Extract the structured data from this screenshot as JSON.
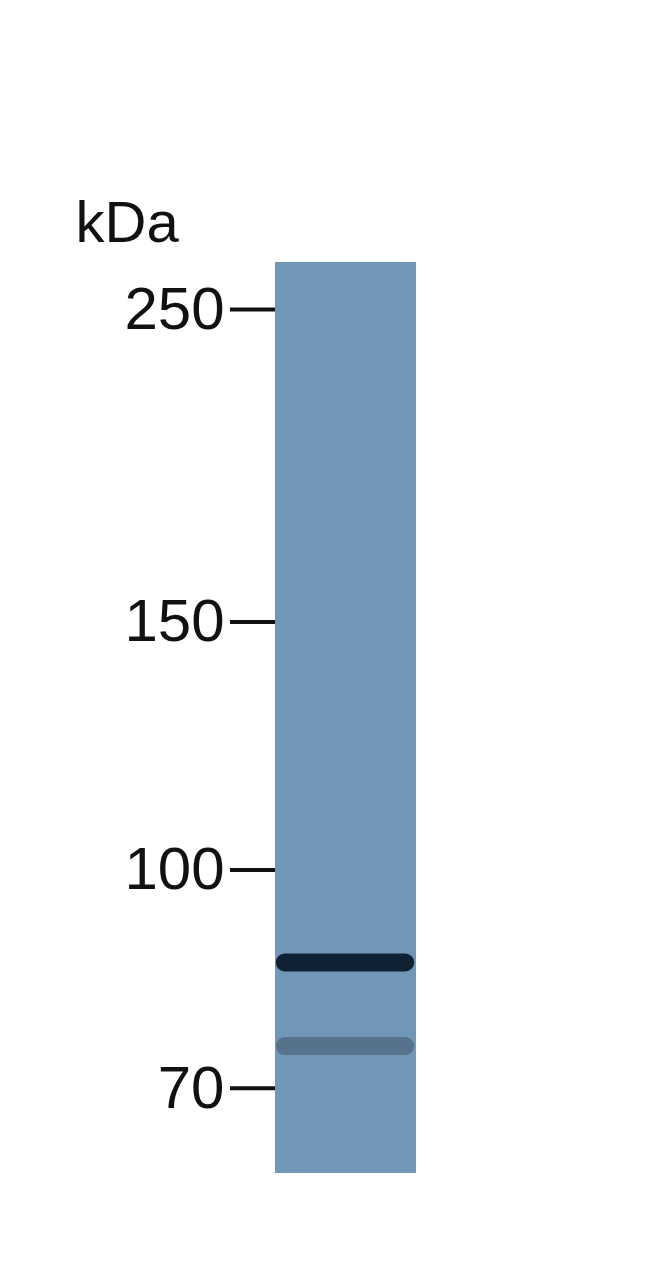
{
  "chart_data": {
    "type": "blot",
    "y_label": "kDa",
    "values": [
      86,
      75
    ],
    "colors": [
      "#0f2233",
      "#56728c"
    ],
    "color": "#7096b8",
    "ylim": [
      61,
      270
    ],
    "yticks": [
      70,
      100,
      150,
      250
    ],
    "log": "y",
    "grid": false
  }
}
